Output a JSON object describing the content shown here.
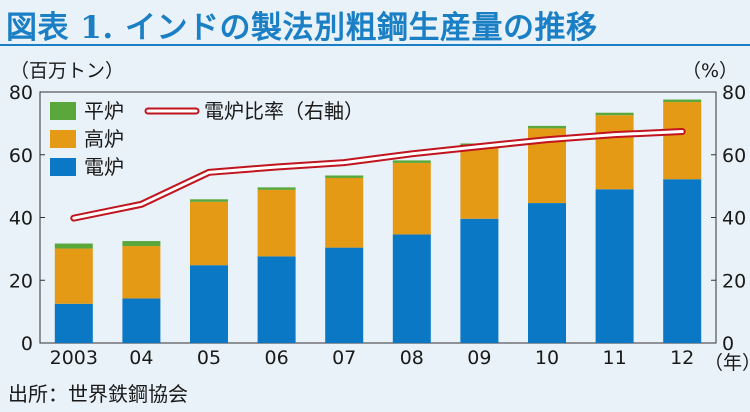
{
  "figure": {
    "title": "図表 1. インドの製法別粗鋼生産量の推移",
    "unit_left": "（百万トン）",
    "unit_right": "（%）",
    "unit_x": "（年）",
    "source": "出所：世界鉄鋼協会"
  },
  "chart_data": {
    "type": "bar",
    "stacked": true,
    "categories": [
      "2003",
      "04",
      "05",
      "06",
      "07",
      "08",
      "09",
      "10",
      "11",
      "12"
    ],
    "series": [
      {
        "name": "電炉",
        "color": "#0a78c4",
        "values": [
          12.5,
          14.2,
          24.8,
          27.6,
          30.4,
          34.6,
          39.6,
          44.6,
          49.0,
          52.2
        ]
      },
      {
        "name": "高炉",
        "color": "#e59a16",
        "values": [
          17.6,
          16.7,
          20.2,
          21.2,
          22.2,
          22.8,
          23.2,
          23.8,
          23.6,
          24.6
        ]
      },
      {
        "name": "平炉",
        "color": "#5aa83c",
        "values": [
          1.6,
          1.6,
          0.8,
          0.8,
          0.8,
          0.8,
          0.8,
          0.8,
          0.8,
          0.8
        ]
      }
    ],
    "line": {
      "name": "電炉比率（右軸）",
      "color": "#c0141e",
      "values": [
        39.8,
        44.2,
        54.4,
        56.1,
        57.5,
        60.3,
        62.6,
        64.8,
        66.4,
        67.4
      ]
    },
    "ylim": [
      0,
      80
    ],
    "y2lim": [
      0,
      80
    ],
    "yticks": [
      0,
      20,
      40,
      60,
      80
    ],
    "grid": false,
    "legend": "top-left"
  }
}
